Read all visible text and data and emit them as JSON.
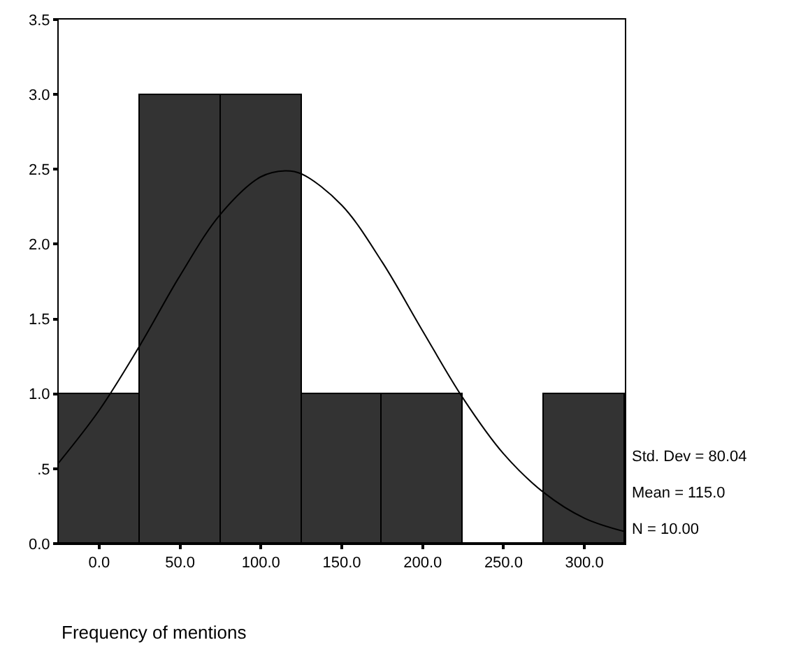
{
  "chart_data": {
    "type": "histogram",
    "xlabel": "Frequency of mentions",
    "bins": [
      -25,
      25,
      75,
      125,
      175,
      225,
      275,
      325
    ],
    "values": [
      1,
      3,
      3,
      1,
      1,
      0,
      1
    ],
    "color": "#333333",
    "series": [
      {
        "type": "line",
        "color": "#000000",
        "x": [
          -25,
          0,
          25,
          50,
          75,
          100,
          115,
          125,
          150,
          175,
          200,
          225,
          250,
          275,
          300,
          325
        ],
        "values": [
          0.54,
          0.89,
          1.32,
          1.79,
          2.2,
          2.45,
          2.49,
          2.47,
          2.26,
          1.88,
          1.42,
          0.97,
          0.6,
          0.34,
          0.17,
          0.08
        ]
      }
    ],
    "xlim": [
      -25,
      325
    ],
    "xticks": [
      {
        "value": 0,
        "label": "0.0"
      },
      {
        "value": 50,
        "label": "50.0"
      },
      {
        "value": 100,
        "label": "100.0"
      },
      {
        "value": 150,
        "label": "150.0"
      },
      {
        "value": 200,
        "label": "200.0"
      },
      {
        "value": 250,
        "label": "250.0"
      },
      {
        "value": 300,
        "label": "300.0"
      }
    ],
    "ylim": [
      0,
      3.5
    ],
    "yticks": [
      {
        "value": 0,
        "label": "0.0"
      },
      {
        "value": 0.5,
        "label": ".5"
      },
      {
        "value": 1,
        "label": "1.0"
      },
      {
        "value": 1.5,
        "label": "1.5"
      },
      {
        "value": 2,
        "label": "2.0"
      },
      {
        "value": 2.5,
        "label": "2.5"
      },
      {
        "value": 3,
        "label": "3.0"
      },
      {
        "value": 3.5,
        "label": "3.5"
      }
    ],
    "annotations": [
      "Std. Dev = 80.04",
      "Mean = 115.0",
      "N = 10.00"
    ]
  }
}
